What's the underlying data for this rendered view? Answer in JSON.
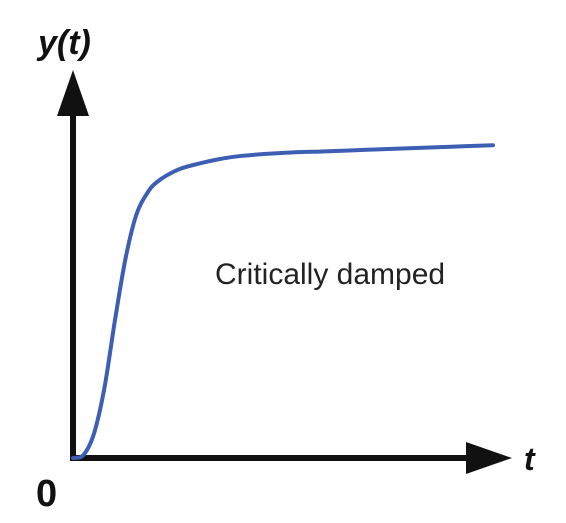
{
  "chart_data": {
    "type": "line",
    "title": "",
    "ylabel": "y(t)",
    "xlabel": "t",
    "origin_label": "0",
    "annotation": "Critically damped",
    "xlim": [
      0,
      10
    ],
    "ylim": [
      0,
      1.2
    ],
    "axis_ticks": false,
    "grid": false,
    "series": [
      {
        "color": "#3d5fb3",
        "x": [
          0,
          0.25,
          0.5,
          0.75,
          1.0,
          1.25,
          1.5,
          1.75,
          2.0,
          2.5,
          3.0,
          3.5,
          4.0,
          5.0,
          6.0,
          7.0,
          8.0,
          9.0,
          10.0
        ],
        "values": [
          0.0,
          0.01,
          0.08,
          0.23,
          0.45,
          0.65,
          0.79,
          0.86,
          0.9,
          0.94,
          0.96,
          0.975,
          0.985,
          0.995,
          1.0,
          1.005,
          1.01,
          1.015,
          1.02
        ]
      }
    ]
  }
}
